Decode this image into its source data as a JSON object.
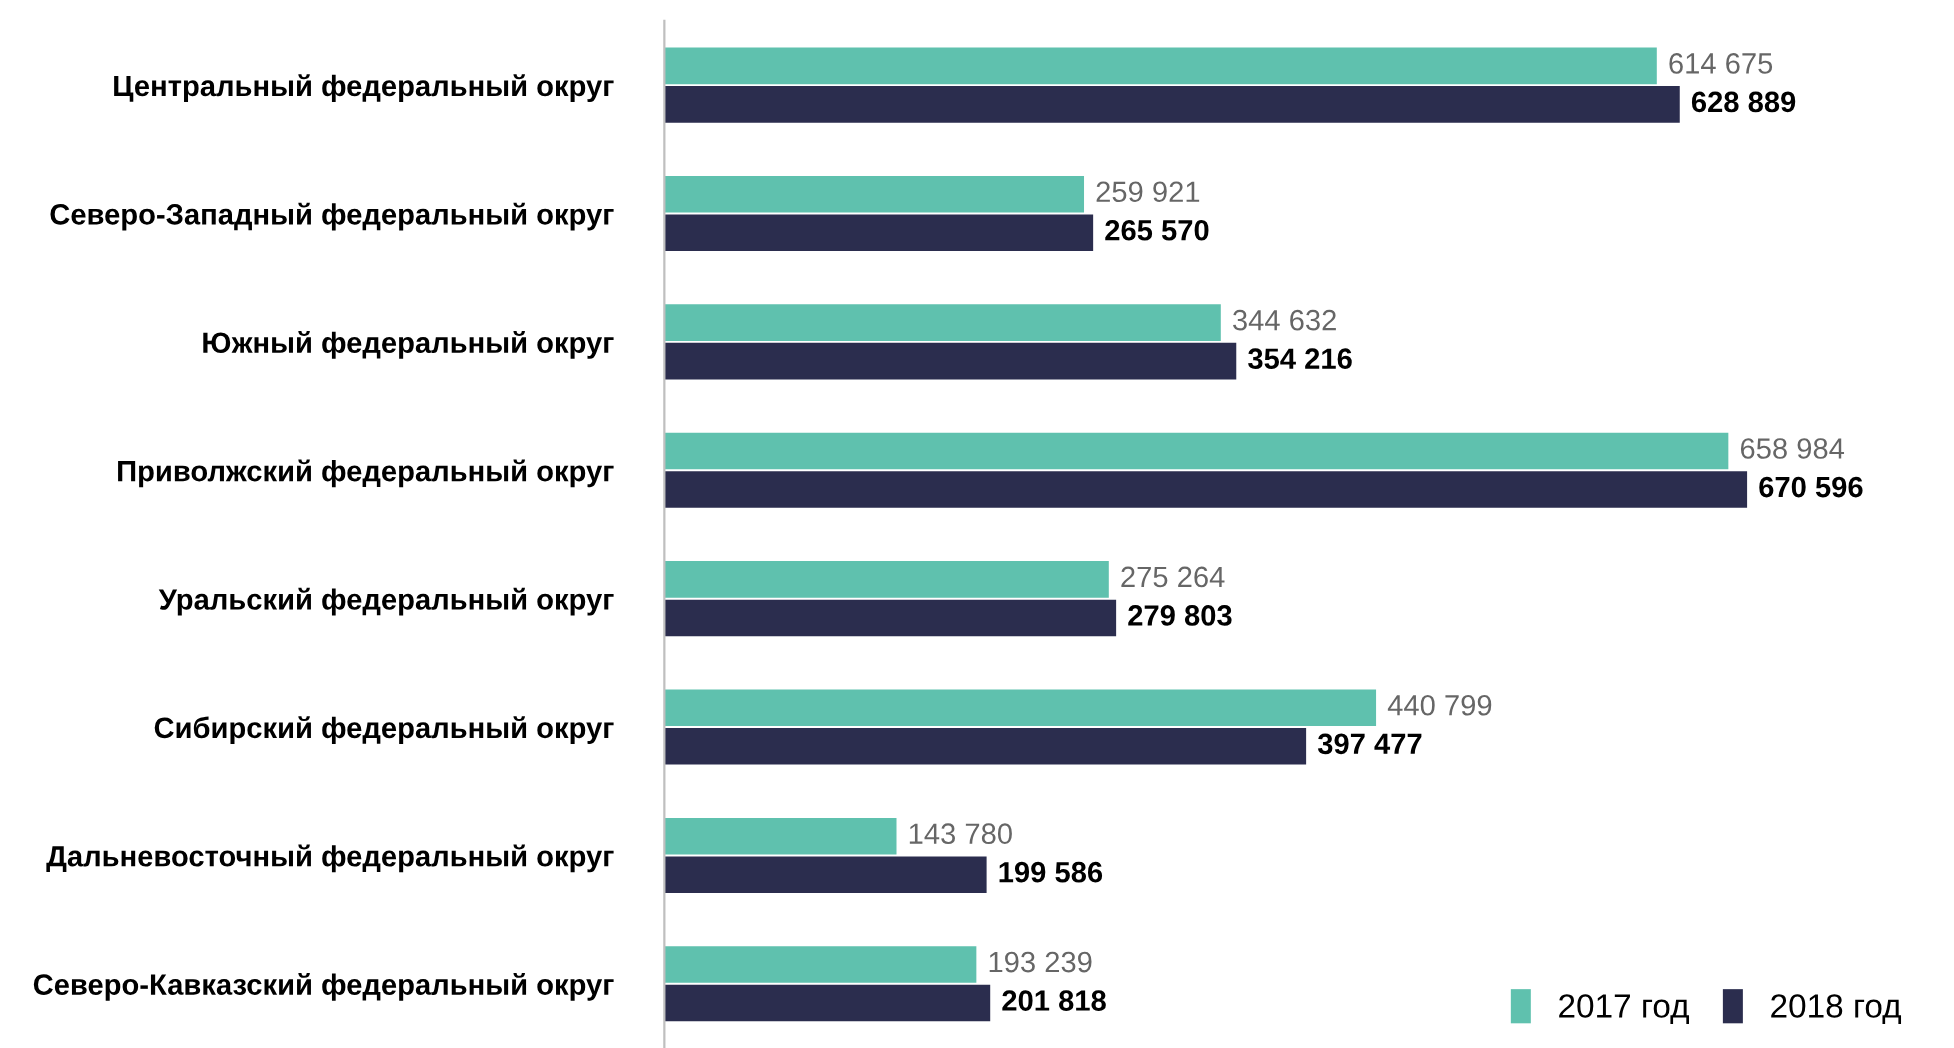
{
  "chart_data": {
    "type": "bar",
    "orientation": "horizontal",
    "legend": "bottom right",
    "grid": false,
    "categories": [
      "Центральный федеральный округ",
      "Северо-Западный федеральный округ",
      "Южный федеральный округ",
      "Приволжский федеральный округ",
      "Уральский федеральный округ",
      "Сибирский федеральный округ",
      "Дальневосточный федеральный округ",
      "Северо-Кавказский федеральный округ"
    ],
    "series": [
      {
        "name": "2017 год",
        "color": "#5fc1ae",
        "values": [
          614675,
          259921,
          344632,
          658984,
          275264,
          440799,
          143780,
          193239
        ],
        "value_labels": [
          "614 675",
          "259 921",
          "344 632",
          "658 984",
          "275 264",
          "440 799",
          "143 780",
          "193 239"
        ]
      },
      {
        "name": "2018 год",
        "color": "#2b2d4e",
        "values": [
          628889,
          265570,
          354216,
          670596,
          279803,
          397477,
          199586,
          201818
        ],
        "value_labels": [
          "628 889",
          "265 570",
          "354 216",
          "670 596",
          "279 803",
          "397 477",
          "199 586",
          "201 818"
        ]
      }
    ]
  }
}
